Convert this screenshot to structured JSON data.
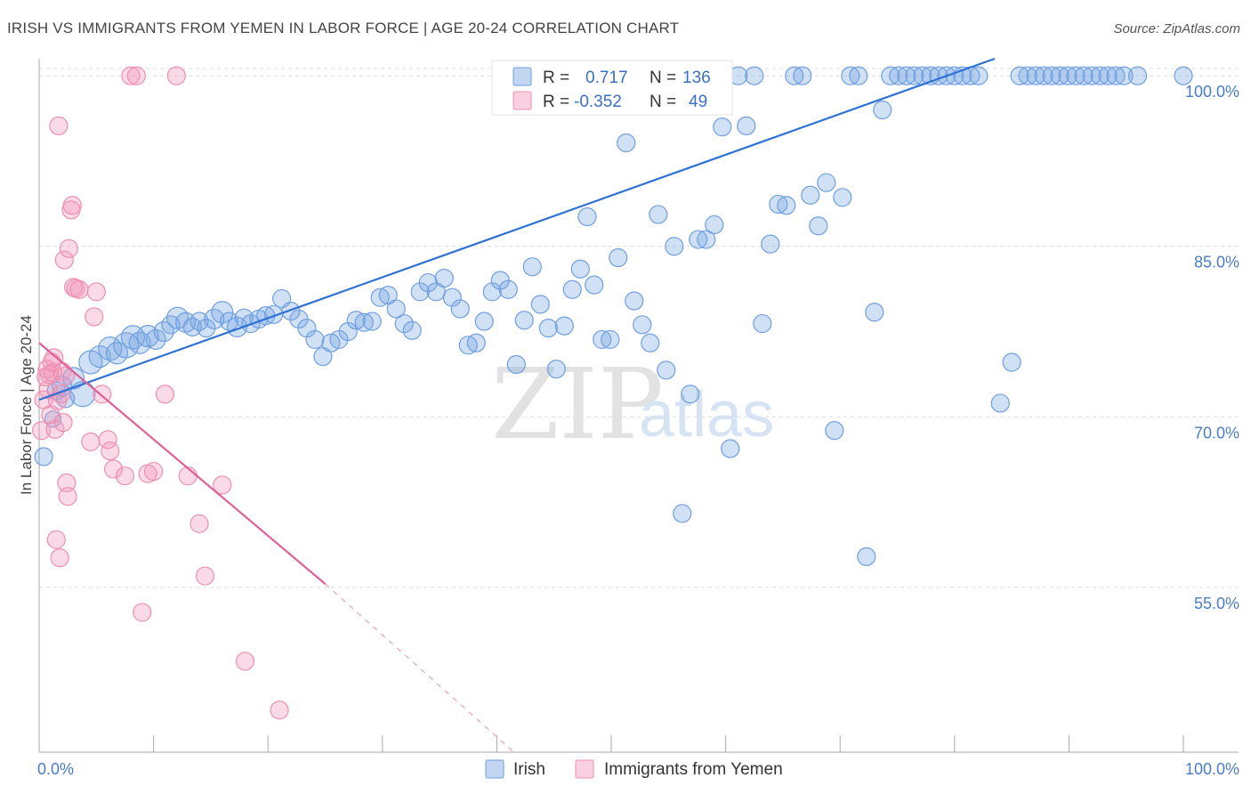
{
  "title": "IRISH VS IMMIGRANTS FROM YEMEN IN LABOR FORCE | AGE 20-24 CORRELATION CHART",
  "source": "Source: ZipAtlas.com",
  "watermark": {
    "zip": "ZIP",
    "atlas": "atlas"
  },
  "chart_data": {
    "type": "scatter",
    "ylabel": "In Labor Force | Age 20-24",
    "xlim": [
      0,
      100
    ],
    "ylim": [
      40.5,
      101.5
    ],
    "y_ticks": [
      {
        "value": 100,
        "label": "100.0%"
      },
      {
        "value": 85,
        "label": "85.0%"
      },
      {
        "value": 70,
        "label": "70.0%"
      },
      {
        "value": 55,
        "label": "55.0%"
      }
    ],
    "x_tick_labels": {
      "left": "0.0%",
      "right": "100.0%"
    },
    "grid": true,
    "legend_position": "bottom-center",
    "stats": [
      {
        "r_label": "R =",
        "r": "0.717",
        "n_label": "N =",
        "n": "136"
      },
      {
        "r_label": "R =",
        "r": "-0.352",
        "n_label": "N =",
        "n": "49"
      }
    ],
    "series": [
      {
        "name": "Irish",
        "color": "#6f9fe0",
        "fill": "rgba(120,165,225,0.35)",
        "trend_color": "#2f72d6",
        "trend": {
          "x0": 0,
          "y0": 71.5,
          "x1": 83.5,
          "y1": 101.5
        },
        "points": [
          [
            0.4,
            66.5,
            10
          ],
          [
            1.2,
            69.8,
            9
          ],
          [
            1.5,
            72.3,
            10
          ],
          [
            2.0,
            72.7,
            11
          ],
          [
            2.3,
            71.6,
            10
          ],
          [
            3.0,
            73.4,
            12
          ],
          [
            3.8,
            72.0,
            14
          ],
          [
            4.5,
            74.8,
            13
          ],
          [
            5.3,
            75.3,
            12
          ],
          [
            6.2,
            76.0,
            13
          ],
          [
            6.8,
            75.6,
            12
          ],
          [
            7.6,
            76.3,
            14
          ],
          [
            8.2,
            77.0,
            13
          ],
          [
            8.8,
            76.5,
            12
          ],
          [
            9.5,
            77.1,
            12
          ],
          [
            10.2,
            76.8,
            11
          ],
          [
            10.9,
            77.5,
            11
          ],
          [
            11.5,
            78.1,
            10
          ],
          [
            12.1,
            78.7,
            12
          ],
          [
            12.8,
            78.3,
            11
          ],
          [
            13.4,
            77.9,
            10
          ],
          [
            14.0,
            78.4,
            10
          ],
          [
            14.6,
            77.8,
            10
          ],
          [
            15.3,
            78.6,
            11
          ],
          [
            16.0,
            79.2,
            12
          ],
          [
            16.6,
            78.4,
            10
          ],
          [
            17.3,
            77.9,
            11
          ],
          [
            17.9,
            78.7,
            10
          ],
          [
            18.5,
            78.2,
            10
          ],
          [
            19.2,
            78.6,
            10
          ],
          [
            19.8,
            78.9,
            10
          ],
          [
            20.5,
            79.0,
            10
          ],
          [
            21.2,
            80.4,
            10
          ],
          [
            22.0,
            79.3,
            10
          ],
          [
            22.7,
            78.6,
            10
          ],
          [
            23.4,
            77.8,
            10
          ],
          [
            24.1,
            76.8,
            10
          ],
          [
            24.8,
            75.3,
            10
          ],
          [
            25.5,
            76.5,
            10
          ],
          [
            26.2,
            76.8,
            10
          ],
          [
            27.0,
            77.5,
            10
          ],
          [
            27.7,
            78.5,
            10
          ],
          [
            28.4,
            78.3,
            10
          ],
          [
            29.1,
            78.4,
            10
          ],
          [
            29.8,
            80.5,
            10
          ],
          [
            30.5,
            80.7,
            10
          ],
          [
            31.2,
            79.5,
            10
          ],
          [
            31.9,
            78.2,
            10
          ],
          [
            32.6,
            77.6,
            10
          ],
          [
            33.3,
            81.0,
            10
          ],
          [
            34.0,
            81.8,
            10
          ],
          [
            34.7,
            81.0,
            10
          ],
          [
            35.4,
            82.2,
            10
          ],
          [
            36.1,
            80.5,
            10
          ],
          [
            36.8,
            79.5,
            10
          ],
          [
            37.5,
            76.3,
            10
          ],
          [
            38.2,
            76.5,
            10
          ],
          [
            38.9,
            78.4,
            10
          ],
          [
            39.6,
            81.0,
            10
          ],
          [
            40.3,
            82.0,
            10
          ],
          [
            41.0,
            81.2,
            10
          ],
          [
            41.7,
            74.6,
            10
          ],
          [
            42.4,
            78.5,
            10
          ],
          [
            43.1,
            83.2,
            10
          ],
          [
            43.8,
            79.9,
            10
          ],
          [
            44.5,
            77.8,
            10
          ],
          [
            45.2,
            74.2,
            10
          ],
          [
            45.9,
            78.0,
            10
          ],
          [
            46.6,
            81.2,
            10
          ],
          [
            47.3,
            83.0,
            10
          ],
          [
            47.9,
            87.6,
            10
          ],
          [
            48.5,
            81.6,
            10
          ],
          [
            49.2,
            76.8,
            10
          ],
          [
            49.9,
            76.8,
            10
          ],
          [
            50.6,
            84.0,
            10
          ],
          [
            51.3,
            94.1,
            10
          ],
          [
            52.0,
            80.2,
            10
          ],
          [
            52.7,
            78.1,
            10
          ],
          [
            53.4,
            76.5,
            10
          ],
          [
            54.1,
            87.8,
            10
          ],
          [
            54.8,
            74.1,
            10
          ],
          [
            55.5,
            85.0,
            10
          ],
          [
            56.2,
            61.5,
            10
          ],
          [
            56.9,
            72.0,
            10
          ],
          [
            57.6,
            85.6,
            10
          ],
          [
            58.3,
            85.6,
            10
          ],
          [
            59.0,
            86.9,
            10
          ],
          [
            59.7,
            95.5,
            10
          ],
          [
            60.4,
            67.2,
            10
          ],
          [
            61.1,
            100.0,
            10
          ],
          [
            61.8,
            95.6,
            10
          ],
          [
            62.5,
            100.0,
            10
          ],
          [
            63.2,
            78.2,
            10
          ],
          [
            63.9,
            85.2,
            10
          ],
          [
            64.6,
            88.7,
            10
          ],
          [
            65.3,
            88.6,
            10
          ],
          [
            66.0,
            100.0,
            10
          ],
          [
            66.7,
            100.0,
            10
          ],
          [
            67.4,
            89.5,
            10
          ],
          [
            68.1,
            86.8,
            10
          ],
          [
            68.8,
            90.6,
            10
          ],
          [
            69.5,
            68.8,
            10
          ],
          [
            70.2,
            89.3,
            10
          ],
          [
            70.9,
            100.0,
            10
          ],
          [
            71.6,
            100.0,
            10
          ],
          [
            72.3,
            57.7,
            10
          ],
          [
            73.0,
            79.2,
            10
          ],
          [
            73.7,
            97.0,
            10
          ],
          [
            74.4,
            100.0,
            10
          ],
          [
            75.1,
            100.0,
            10
          ],
          [
            75.8,
            100.0,
            10
          ],
          [
            76.5,
            100.0,
            10
          ],
          [
            77.2,
            100.0,
            10
          ],
          [
            77.9,
            100.0,
            10
          ],
          [
            78.6,
            100.0,
            10
          ],
          [
            79.3,
            100.0,
            10
          ],
          [
            80.0,
            100.0,
            10
          ],
          [
            80.7,
            100.0,
            10
          ],
          [
            81.4,
            100.0,
            10
          ],
          [
            82.1,
            100.0,
            10
          ],
          [
            84.0,
            71.2,
            10
          ],
          [
            85.0,
            74.8,
            10
          ],
          [
            85.7,
            100.0,
            10
          ],
          [
            86.4,
            100.0,
            10
          ],
          [
            87.1,
            100.0,
            10
          ],
          [
            87.8,
            100.0,
            10
          ],
          [
            88.5,
            100.0,
            10
          ],
          [
            89.2,
            100.0,
            10
          ],
          [
            89.9,
            100.0,
            10
          ],
          [
            90.6,
            100.0,
            10
          ],
          [
            91.3,
            100.0,
            10
          ],
          [
            92.0,
            100.0,
            10
          ],
          [
            92.7,
            100.0,
            10
          ],
          [
            93.4,
            100.0,
            10
          ],
          [
            94.1,
            100.0,
            10
          ],
          [
            94.8,
            100.0,
            10
          ],
          [
            96.0,
            100.0,
            10
          ],
          [
            100.0,
            100.0,
            10
          ]
        ]
      },
      {
        "name": "Immigrants from Yemen",
        "color": "#ee8fb0",
        "fill": "rgba(240,150,185,0.35)",
        "trend_color": "#e0609a",
        "trend": {
          "x0": 0,
          "y0": 76.5,
          "x1": 25.0,
          "y1": 55.3
        },
        "trend_dashed": {
          "x0": 25.0,
          "y0": 55.3,
          "x1": 41.5,
          "y1": 40.5
        },
        "points": [
          [
            0.2,
            68.8,
            10
          ],
          [
            0.4,
            71.5,
            10
          ],
          [
            0.6,
            73.5,
            10
          ],
          [
            0.7,
            74.2,
            10
          ],
          [
            0.8,
            72.4,
            10
          ],
          [
            0.9,
            73.7,
            10
          ],
          [
            1.0,
            70.2,
            10
          ],
          [
            1.1,
            74.8,
            10
          ],
          [
            1.2,
            73.9,
            10
          ],
          [
            1.3,
            75.2,
            10
          ],
          [
            1.4,
            68.9,
            10
          ],
          [
            1.5,
            59.2,
            10
          ],
          [
            1.6,
            71.4,
            10
          ],
          [
            1.7,
            95.6,
            10
          ],
          [
            1.8,
            57.6,
            10
          ],
          [
            1.9,
            72.0,
            10
          ],
          [
            2.0,
            74.0,
            10
          ],
          [
            2.1,
            69.5,
            10
          ],
          [
            2.2,
            83.8,
            10
          ],
          [
            2.3,
            73.6,
            10
          ],
          [
            2.4,
            64.2,
            10
          ],
          [
            2.5,
            63.0,
            10
          ],
          [
            2.6,
            84.8,
            10
          ],
          [
            2.8,
            88.2,
            10
          ],
          [
            2.9,
            88.6,
            10
          ],
          [
            3.0,
            81.4,
            10
          ],
          [
            3.2,
            81.3,
            10
          ],
          [
            3.5,
            81.2,
            10
          ],
          [
            4.5,
            67.8,
            10
          ],
          [
            4.8,
            78.8,
            10
          ],
          [
            5.0,
            81.0,
            10
          ],
          [
            5.5,
            72.0,
            10
          ],
          [
            6.0,
            68.0,
            10
          ],
          [
            6.2,
            67.0,
            10
          ],
          [
            6.5,
            65.4,
            10
          ],
          [
            7.5,
            64.8,
            10
          ],
          [
            8.0,
            100.0,
            10
          ],
          [
            8.5,
            100.0,
            10
          ],
          [
            9.0,
            52.8,
            10
          ],
          [
            9.5,
            65.0,
            10
          ],
          [
            10.0,
            65.2,
            10
          ],
          [
            11.0,
            72.0,
            10
          ],
          [
            12.0,
            100.0,
            10
          ],
          [
            13.0,
            64.8,
            10
          ],
          [
            14.0,
            60.6,
            10
          ],
          [
            14.5,
            56.0,
            10
          ],
          [
            16.0,
            64.0,
            10
          ],
          [
            18.0,
            48.5,
            10
          ],
          [
            21.0,
            44.2,
            10
          ]
        ]
      }
    ]
  },
  "legend": {
    "items": [
      {
        "label": "Irish"
      },
      {
        "label": "Immigrants from Yemen"
      }
    ]
  }
}
